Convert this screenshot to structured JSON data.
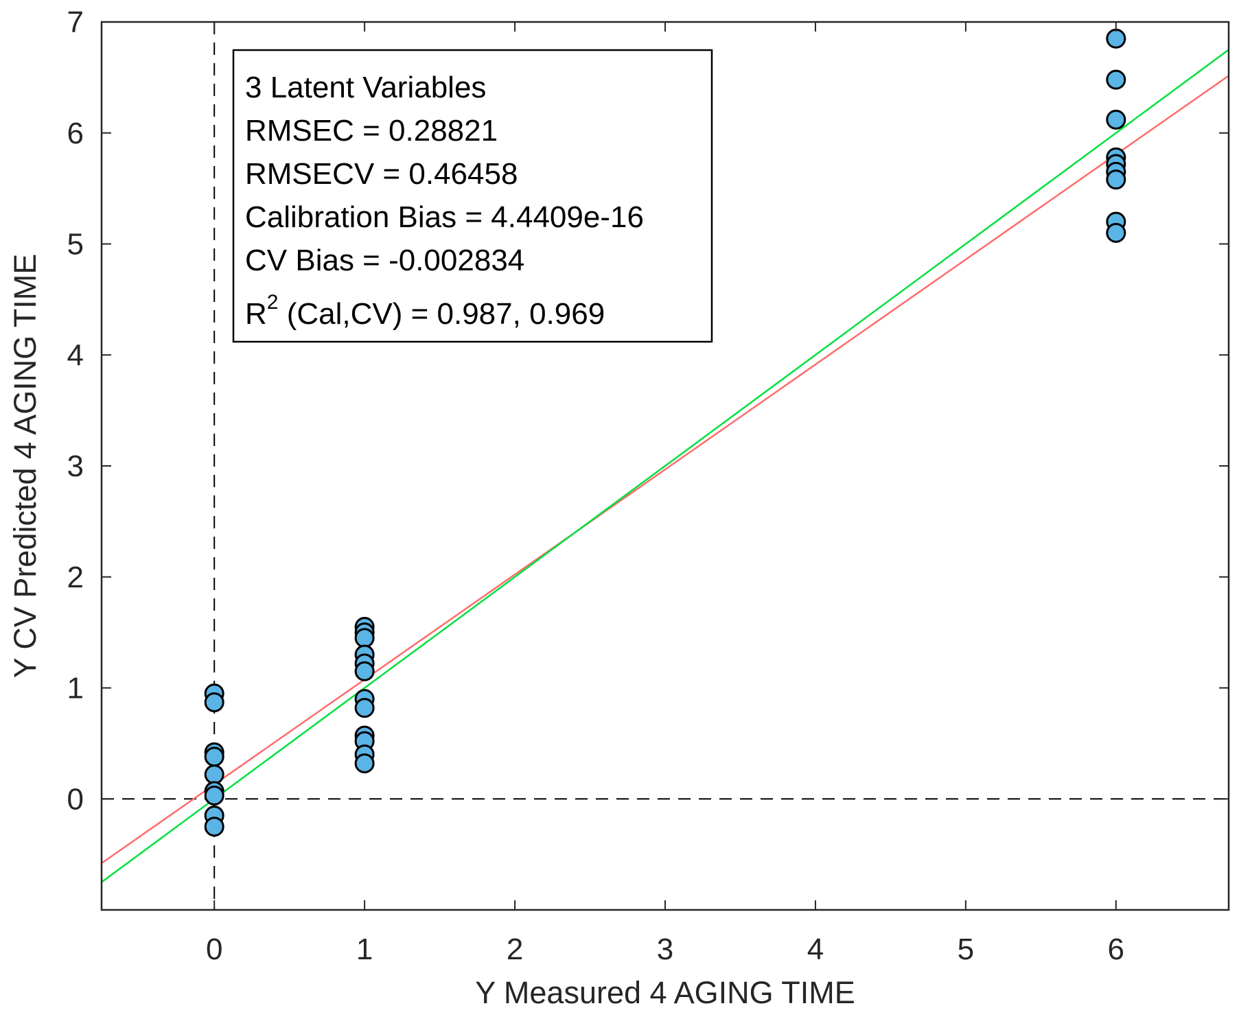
{
  "chart_data": {
    "type": "scatter",
    "title": "",
    "xlabel": "Y Measured 4 AGING TIME",
    "ylabel": "Y CV Predicted 4 AGING TIME",
    "xlim": [
      -0.75,
      6.75
    ],
    "ylim": [
      -1,
      7
    ],
    "xticks": [
      0,
      1,
      2,
      3,
      4,
      5,
      6
    ],
    "yticks": [
      0,
      1,
      2,
      3,
      4,
      5,
      6,
      7
    ],
    "grid": false,
    "reference_lines": [
      {
        "name": "x-zero",
        "orientation": "vertical",
        "value": 0,
        "style": "dashed"
      },
      {
        "name": "y-zero",
        "orientation": "horizontal",
        "value": 0,
        "style": "dashed"
      }
    ],
    "fit_lines": [
      {
        "name": "fit-line-red",
        "color": "#ff6b6b",
        "slope": 0.946,
        "intercept": 0.13
      },
      {
        "name": "fit-line-green",
        "color": "#00e040",
        "slope": 1.0,
        "intercept": 0.0
      }
    ],
    "series": [
      {
        "name": "CV predictions",
        "color": "#5ab4e5",
        "points": [
          {
            "x": 0,
            "y": 0.95
          },
          {
            "x": 0,
            "y": 0.87
          },
          {
            "x": 0,
            "y": 0.42
          },
          {
            "x": 0,
            "y": 0.38
          },
          {
            "x": 0,
            "y": 0.22
          },
          {
            "x": 0,
            "y": 0.07
          },
          {
            "x": 0,
            "y": 0.03
          },
          {
            "x": 0,
            "y": -0.15
          },
          {
            "x": 0,
            "y": -0.25
          },
          {
            "x": 1,
            "y": 1.55
          },
          {
            "x": 1,
            "y": 1.5
          },
          {
            "x": 1,
            "y": 1.45
          },
          {
            "x": 1,
            "y": 1.3
          },
          {
            "x": 1,
            "y": 1.22
          },
          {
            "x": 1,
            "y": 1.15
          },
          {
            "x": 1,
            "y": 0.9
          },
          {
            "x": 1,
            "y": 0.82
          },
          {
            "x": 1,
            "y": 0.57
          },
          {
            "x": 1,
            "y": 0.52
          },
          {
            "x": 1,
            "y": 0.4
          },
          {
            "x": 1,
            "y": 0.32
          },
          {
            "x": 6,
            "y": 6.85
          },
          {
            "x": 6,
            "y": 6.48
          },
          {
            "x": 6,
            "y": 6.12
          },
          {
            "x": 6,
            "y": 5.78
          },
          {
            "x": 6,
            "y": 5.72
          },
          {
            "x": 6,
            "y": 5.65
          },
          {
            "x": 6,
            "y": 5.58
          },
          {
            "x": 6,
            "y": 5.2
          },
          {
            "x": 6,
            "y": 5.1
          }
        ]
      }
    ],
    "annotation": {
      "lines": [
        "3 Latent Variables",
        "RMSEC = 0.28821",
        "RMSECV = 0.46458",
        "Calibration Bias = 4.4409e-16",
        "CV Bias = -0.002834"
      ],
      "r2_label_base": "R",
      "r2_label_superscript": "2",
      "r2_label_rest": " (Cal,CV) = 0.987, 0.969"
    }
  }
}
